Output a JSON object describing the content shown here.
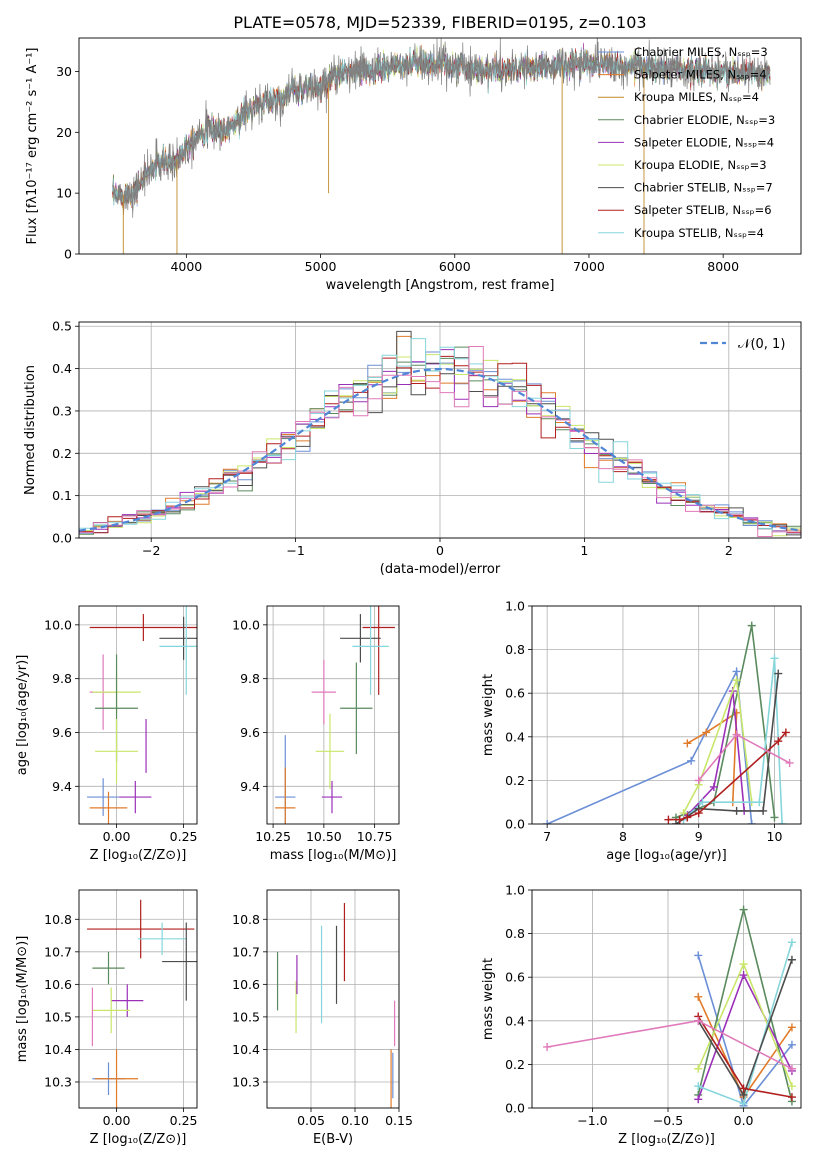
{
  "figure": {
    "title": "PLATE=0578, MJD=52339, FIBERID=0195, z=0.103"
  },
  "colors": {
    "Chabrier MILES": "#6b8fd6",
    "Salpeter MILES": "#e07b2a",
    "Kroupa MILES": "#c28a2a",
    "Chabrier ELODIE": "#5a8a5e",
    "Salpeter ELODIE": "#9b30b8",
    "Kroupa ELODIE": "#c9e66a",
    "Chabrier STELIB": "#4d4d4d",
    "Salpeter STELIB": "#b01e1e",
    "Kroupa STELIB": "#86d6dc",
    "pink": "#e07aba",
    "normal": "#4f86d6",
    "grid": "#b0b0b0"
  },
  "chart_data": [
    {
      "id": "spectrum",
      "type": "line",
      "xlabel": "wavelength [Angstrom, rest frame]",
      "ylabel": "Flux [fλ10⁻¹⁷ erg cm⁻² s⁻¹ A⁻¹]",
      "xlim": [
        3200,
        8580
      ],
      "ylim": [
        0,
        35.5
      ],
      "xticks": [
        4000,
        5000,
        6000,
        7000,
        8000
      ],
      "yticks": [
        0,
        10,
        20,
        30
      ],
      "grid": false,
      "legend_position": "upper-right",
      "legend": [
        "Chabrier MILES, Nₛₛₚ=3",
        "Salpeter MILES, Nₛₛₚ=4",
        "Kroupa MILES, Nₛₛₚ=4",
        "Chabrier ELODIE, Nₛₛₚ=3",
        "Salpeter ELODIE, Nₛₛₚ=4",
        "Kroupa ELODIE, Nₛₛₚ=3",
        "Chabrier STELIB, Nₛₛₚ=7",
        "Salpeter STELIB, Nₛₛₚ=6",
        "Kroupa STELIB, Nₛₛₚ=4"
      ],
      "series_colors": [
        "#6b8fd6",
        "#e07b2a",
        "#c28a2a",
        "#5a8a5e",
        "#9b30b8",
        "#c9e66a",
        "#4d4d4d",
        "#b01e1e",
        "#86d6dc"
      ],
      "observed_color": "#808080",
      "continuum": {
        "x": [
          3450,
          3600,
          3700,
          3800,
          3900,
          3950,
          4000,
          4100,
          4200,
          4300,
          4400,
          4500,
          4600,
          4700,
          4800,
          4900,
          5000,
          5100,
          5200,
          5300,
          5500,
          5800,
          6000,
          6300,
          6500,
          6800,
          7000,
          7200,
          7500,
          7800,
          8000,
          8300
        ],
        "y": [
          9.5,
          10,
          13,
          15,
          15,
          16,
          18,
          20,
          20.5,
          20,
          22.5,
          24,
          25,
          25.5,
          27,
          27.5,
          27,
          29,
          30,
          30,
          30.5,
          31.5,
          31,
          30,
          30.5,
          31,
          31.5,
          31,
          30.5,
          30,
          30,
          29.5
        ]
      },
      "dips": [
        {
          "x": 3530,
          "y": 0
        },
        {
          "x": 3930,
          "y": 0
        },
        {
          "x": 5060,
          "y": 10
        },
        {
          "x": 6800,
          "y": 0
        },
        {
          "x": 7410,
          "y": 0
        }
      ]
    },
    {
      "id": "residuals",
      "type": "step",
      "xlabel": "(data-model)/error",
      "ylabel": "Normed distribution",
      "xlim": [
        -2.5,
        2.5
      ],
      "ylim": [
        0,
        0.51
      ],
      "xticks": [
        -2,
        -1,
        0,
        1,
        2
      ],
      "xtick_labels": [
        "−2",
        "−1",
        "0",
        "1",
        "2"
      ],
      "yticks": [
        0.0,
        0.1,
        0.2,
        0.3,
        0.4,
        0.5
      ],
      "ytick_labels": [
        "0.0",
        "0.1",
        "0.2",
        "0.3",
        "0.4",
        "0.5"
      ],
      "grid": true,
      "legend": "𝒩(0, 1)",
      "bin_width": 0.1
    },
    {
      "id": "age_vs_Z",
      "type": "errorbar",
      "xlabel": "Z [log₁₀(Z/Z⊙)]",
      "ylabel": "age  [log₁₀(age/yr)]",
      "xlim": [
        -0.14,
        0.3
      ],
      "ylim": [
        9.26,
        10.07
      ],
      "xticks": [
        0.0,
        0.25
      ],
      "xtick_labels": [
        "0.00",
        "0.25"
      ],
      "yticks": [
        9.4,
        9.6,
        9.8,
        10.0
      ],
      "ytick_labels": [
        "9.4",
        "9.6",
        "9.8",
        "10.0"
      ],
      "grid": true,
      "points": [
        {
          "c": "#b01e1e",
          "x": 0.1,
          "xe": 0.2,
          "y": 9.99,
          "ye": 0.05
        },
        {
          "c": "#4d4d4d",
          "x": 0.25,
          "xe": 0.09,
          "y": 9.95,
          "ye": 0.08
        },
        {
          "c": "#86d6dc",
          "x": 0.26,
          "xe": 0.1,
          "y": 9.92,
          "ye": 0.18
        },
        {
          "c": "#e07aba",
          "x": -0.05,
          "xe": 0.05,
          "y": 9.75,
          "ye": 0.14
        },
        {
          "c": "#c9e66a",
          "x": 0.0,
          "xe": 0.09,
          "y": 9.75,
          "ye": 0.08
        },
        {
          "c": "#5a8a5e",
          "x": 0.0,
          "xe": 0.08,
          "y": 9.69,
          "ye": 0.2
        },
        {
          "c": "#9b30b8",
          "x": 0.11,
          "xe": 0.0,
          "y": 9.55,
          "ye": 0.1
        },
        {
          "c": "#c9e66a",
          "x": 0.0,
          "xe": 0.08,
          "y": 9.53,
          "ye": 0.12
        },
        {
          "c": "#6b8fd6",
          "x": -0.05,
          "xe": 0.06,
          "y": 9.36,
          "ye": 0.07
        },
        {
          "c": "#9b30b8",
          "x": 0.07,
          "xe": 0.06,
          "y": 9.36,
          "ye": 0.06
        },
        {
          "c": "#e07b2a",
          "x": -0.03,
          "xe": 0.07,
          "y": 9.32,
          "ye": 0.06
        }
      ]
    },
    {
      "id": "age_vs_mass",
      "type": "errorbar",
      "xlabel": "mass [log₁₀(M/M⊙)]",
      "ylabel": "",
      "xlim": [
        10.22,
        10.87
      ],
      "ylim": [
        9.26,
        10.07
      ],
      "xticks": [
        10.25,
        10.5,
        10.75
      ],
      "xtick_labels": [
        "10.25",
        "10.50",
        "10.75"
      ],
      "yticks": [
        9.4,
        9.6,
        9.8,
        10.0
      ],
      "ytick_labels": [
        "9.4",
        "9.6",
        "9.8",
        "10.0"
      ],
      "grid": true,
      "points": [
        {
          "c": "#b01e1e",
          "x": 10.77,
          "xe": 0.08,
          "y": 9.99,
          "ye": 0.25
        },
        {
          "c": "#4d4d4d",
          "x": 10.68,
          "xe": 0.1,
          "y": 9.95,
          "ye": 0.09
        },
        {
          "c": "#86d6dc",
          "x": 10.73,
          "xe": 0.09,
          "y": 9.92,
          "ye": 0.18
        },
        {
          "c": "#e07aba",
          "x": 10.5,
          "xe": 0.06,
          "y": 9.75,
          "ye": 0.12
        },
        {
          "c": "#5a8a5e",
          "x": 10.66,
          "xe": 0.08,
          "y": 9.69,
          "ye": 0.17
        },
        {
          "c": "#c9e66a",
          "x": 10.53,
          "xe": 0.07,
          "y": 9.53,
          "ye": 0.14
        },
        {
          "c": "#6b8fd6",
          "x": 10.31,
          "xe": 0.05,
          "y": 9.36,
          "ye": 0.23
        },
        {
          "c": "#9b30b8",
          "x": 10.54,
          "xe": 0.05,
          "y": 9.36,
          "ye": 0.06
        },
        {
          "c": "#e07b2a",
          "x": 10.31,
          "xe": 0.05,
          "y": 9.32,
          "ye": 0.15
        }
      ]
    },
    {
      "id": "weight_vs_age",
      "type": "line",
      "xlabel": "age  [log₁₀(age/yr)]",
      "ylabel": "mass weight",
      "xlim": [
        6.8,
        10.35
      ],
      "ylim": [
        0,
        1.0
      ],
      "xticks": [
        7,
        8,
        9,
        10
      ],
      "yticks": [
        0.0,
        0.2,
        0.4,
        0.6,
        0.8,
        1.0
      ],
      "ytick_labels": [
        "0.0",
        "0.2",
        "0.4",
        "0.6",
        "0.8",
        "1.0"
      ],
      "grid": true,
      "series": [
        {
          "c": "#6b8fd6",
          "x": [
            7.0,
            8.9,
            9.5,
            9.7
          ],
          "y": [
            0.0,
            0.29,
            0.7,
            0.0
          ]
        },
        {
          "c": "#e07b2a",
          "x": [
            8.85,
            9.1,
            9.5,
            9.45
          ],
          "y": [
            0.37,
            0.42,
            0.51,
            0.1
          ]
        },
        {
          "c": "#5a8a5e",
          "x": [
            8.7,
            9.2,
            9.7,
            10.0
          ],
          "y": [
            0.03,
            0.1,
            0.91,
            0.03
          ]
        },
        {
          "c": "#9b30b8",
          "x": [
            8.85,
            9.2,
            9.45,
            9.6
          ],
          "y": [
            0.04,
            0.17,
            0.61,
            0.06
          ]
        },
        {
          "c": "#c9e66a",
          "x": [
            8.8,
            9.0,
            9.5,
            9.7
          ],
          "y": [
            0.05,
            0.18,
            0.66,
            0.1
          ]
        },
        {
          "c": "#86d6dc",
          "x": [
            8.8,
            9.05,
            9.8,
            10.0,
            10.1
          ],
          "y": [
            0.02,
            0.1,
            0.1,
            0.76,
            0.0
          ]
        },
        {
          "c": "#4d4d4d",
          "x": [
            8.7,
            9.0,
            9.5,
            9.85,
            10.05
          ],
          "y": [
            0.0,
            0.07,
            0.06,
            0.06,
            0.69
          ]
        },
        {
          "c": "#b01e1e",
          "x": [
            8.6,
            8.75,
            8.85,
            9.0,
            10.05,
            10.15
          ],
          "y": [
            0.02,
            0.02,
            0.03,
            0.05,
            0.38,
            0.42
          ]
        },
        {
          "c": "#e07aba",
          "x": [
            9.0,
            9.5,
            10.2
          ],
          "y": [
            0.2,
            0.41,
            0.28
          ]
        }
      ]
    },
    {
      "id": "mass_vs_Z",
      "type": "errorbar",
      "xlabel": "Z [log₁₀(Z/Z⊙)]",
      "ylabel": "mass [log₁₀(M/M⊙)]",
      "xlim": [
        -0.14,
        0.3
      ],
      "ylim": [
        10.22,
        10.89
      ],
      "xticks": [
        0.0,
        0.25
      ],
      "xtick_labels": [
        "0.00",
        "0.25"
      ],
      "yticks": [
        10.3,
        10.4,
        10.5,
        10.6,
        10.7,
        10.8
      ],
      "ytick_labels": [
        "10.3",
        "10.4",
        "10.5",
        "10.6",
        "10.7",
        "10.8"
      ],
      "grid": true,
      "points": [
        {
          "c": "#b01e1e",
          "x": 0.09,
          "xe": 0.2,
          "y": 10.77,
          "ye": 0.09
        },
        {
          "c": "#86d6dc",
          "x": 0.17,
          "xe": 0.09,
          "y": 10.74,
          "ye": 0.05
        },
        {
          "c": "#4d4d4d",
          "x": 0.26,
          "xe": 0.09,
          "y": 10.67,
          "ye": 0.12
        },
        {
          "c": "#5a8a5e",
          "x": -0.03,
          "xe": 0.06,
          "y": 10.65,
          "ye": 0.05
        },
        {
          "c": "#9b30b8",
          "x": 0.04,
          "xe": 0.06,
          "y": 10.55,
          "ye": 0.05
        },
        {
          "c": "#c9e66a",
          "x": -0.02,
          "xe": 0.07,
          "y": 10.52,
          "ye": 0.07
        },
        {
          "c": "#e07aba",
          "x": -0.09,
          "xe": 0.0,
          "y": 10.5,
          "ye": 0.09
        },
        {
          "c": "#6b8fd6",
          "x": -0.03,
          "xe": 0.06,
          "y": 10.31,
          "ye": 0.05
        },
        {
          "c": "#e07b2a",
          "x": 0.0,
          "xe": 0.08,
          "y": 10.31,
          "ye": 0.09
        }
      ]
    },
    {
      "id": "mass_vs_EBV",
      "type": "errorbar",
      "xlabel": "E(B-V)",
      "ylabel": "",
      "xlim": [
        0.0,
        0.15
      ],
      "ylim": [
        10.22,
        10.89
      ],
      "xticks": [
        0.05,
        0.1,
        0.15
      ],
      "xtick_labels": [
        "0.05",
        "0.10",
        "0.15"
      ],
      "yticks": [
        10.3,
        10.4,
        10.5,
        10.6,
        10.7,
        10.8
      ],
      "ytick_labels": [
        "10.3",
        "10.4",
        "10.5",
        "10.6",
        "10.7",
        "10.8"
      ],
      "grid": true,
      "points": [
        {
          "c": "#5a8a5e",
          "x": 0.012,
          "xe": 0.0,
          "y": 10.61,
          "ye": 0.09
        },
        {
          "c": "#c9e66a",
          "x": 0.033,
          "xe": 0.0,
          "y": 10.53,
          "ye": 0.08
        },
        {
          "c": "#9b30b8",
          "x": 0.034,
          "xe": 0.0,
          "y": 10.63,
          "ye": 0.06
        },
        {
          "c": "#86d6dc",
          "x": 0.062,
          "xe": 0.0,
          "y": 10.63,
          "ye": 0.15
        },
        {
          "c": "#4d4d4d",
          "x": 0.079,
          "xe": 0.0,
          "y": 10.66,
          "ye": 0.12
        },
        {
          "c": "#b01e1e",
          "x": 0.088,
          "xe": 0.0,
          "y": 10.73,
          "ye": 0.12
        },
        {
          "c": "#e07b2a",
          "x": 0.141,
          "xe": 0.0,
          "y": 10.31,
          "ye": 0.09
        },
        {
          "c": "#6b8fd6",
          "x": 0.143,
          "xe": 0.0,
          "y": 10.32,
          "ye": 0.07
        },
        {
          "c": "#e07aba",
          "x": 0.145,
          "xe": 0.0,
          "y": 10.48,
          "ye": 0.07
        }
      ]
    },
    {
      "id": "weight_vs_Z",
      "type": "line",
      "xlabel": "Z [log₁₀(Z/Z⊙)]",
      "ylabel": "mass weight",
      "xlim": [
        -1.4,
        0.38
      ],
      "ylim": [
        0,
        1.0
      ],
      "xticks": [
        -1.0,
        -0.5,
        0.0
      ],
      "xtick_labels": [
        "−1.0",
        "−0.5",
        "0.0"
      ],
      "yticks": [
        0.0,
        0.2,
        0.4,
        0.6,
        0.8,
        1.0
      ],
      "ytick_labels": [
        "0.0",
        "0.2",
        "0.4",
        "0.6",
        "0.8",
        "1.0"
      ],
      "grid": true,
      "series": [
        {
          "c": "#6b8fd6",
          "x": [
            -0.3,
            0.0,
            0.32
          ],
          "y": [
            0.7,
            0.01,
            0.29
          ]
        },
        {
          "c": "#e07b2a",
          "x": [
            -0.3,
            0.0,
            0.32
          ],
          "y": [
            0.51,
            0.05,
            0.37
          ]
        },
        {
          "c": "#5a8a5e",
          "x": [
            -0.3,
            0.0,
            0.32
          ],
          "y": [
            0.06,
            0.91,
            0.03
          ]
        },
        {
          "c": "#9b30b8",
          "x": [
            -0.3,
            0.0,
            0.32
          ],
          "y": [
            0.04,
            0.61,
            0.17
          ]
        },
        {
          "c": "#c9e66a",
          "x": [
            -0.3,
            0.0,
            0.32
          ],
          "y": [
            0.18,
            0.66,
            0.1
          ]
        },
        {
          "c": "#86d6dc",
          "x": [
            -0.3,
            0.0,
            0.32
          ],
          "y": [
            0.1,
            0.02,
            0.76
          ]
        },
        {
          "c": "#4d4d4d",
          "x": [
            -0.3,
            0.0,
            0.32
          ],
          "y": [
            0.4,
            0.06,
            0.68
          ]
        },
        {
          "c": "#b01e1e",
          "x": [
            -0.3,
            0.0,
            0.32
          ],
          "y": [
            0.42,
            0.09,
            0.05
          ]
        },
        {
          "c": "#e07aba",
          "x": [
            -1.3,
            -0.3,
            0.32
          ],
          "y": [
            0.28,
            0.4,
            0.18
          ]
        }
      ]
    }
  ]
}
